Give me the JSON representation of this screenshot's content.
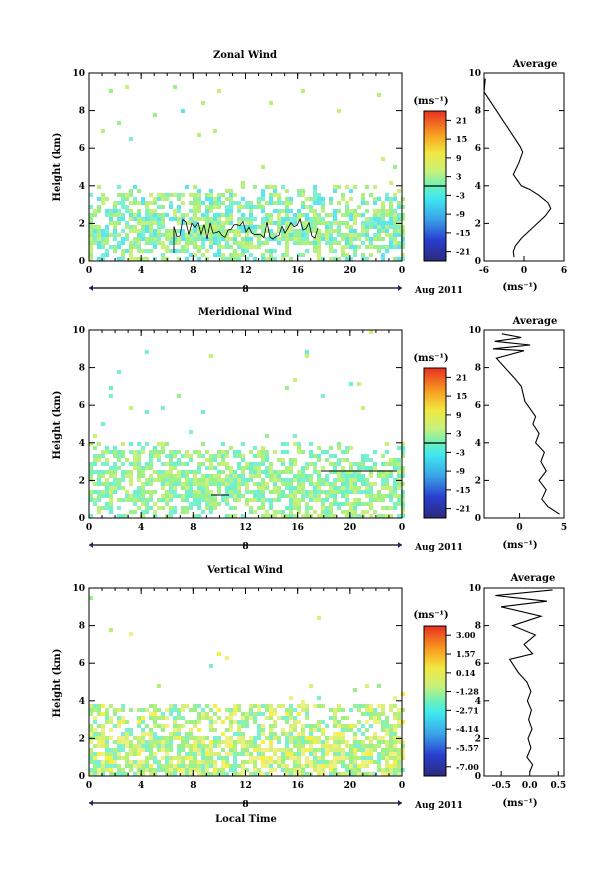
{
  "date_label": "Aug 2011",
  "day_label": "8",
  "xlabel": "Local Time",
  "ylabel": "Height (km)",
  "unit_label": "(ms⁻¹)",
  "x_ticks": [
    "0",
    "4",
    "8",
    "12",
    "16",
    "20",
    "0"
  ],
  "y_ticks": [
    "0",
    "2",
    "4",
    "6",
    "8",
    "10"
  ],
  "avg_title": "Average",
  "chart_data": [
    {
      "type": "heatmap",
      "title": "Zonal Wind",
      "xlabel": "",
      "ylabel": "Height (km)",
      "xlim": [
        0,
        24
      ],
      "ylim": [
        0,
        10
      ],
      "colorbar_ticks": [
        "21",
        "15",
        "9",
        "3",
        "-3",
        "-9",
        "-15",
        "-21"
      ],
      "colorbar_range": [
        -24,
        24
      ],
      "colors": {
        "dominant_low": "#5ee6f0",
        "dominant_high": "#c8f07a"
      },
      "avg_profile": {
        "title": "Average",
        "xlabel": "(ms⁻¹)",
        "x_ticks": [
          "-6",
          "0",
          "6"
        ],
        "xlim": [
          -6,
          6
        ],
        "points": [
          [
            -1.5,
            0.2
          ],
          [
            -1.6,
            0.5
          ],
          [
            -1.3,
            0.8
          ],
          [
            -0.4,
            1.2
          ],
          [
            0.8,
            1.6
          ],
          [
            2.0,
            2.0
          ],
          [
            3.2,
            2.4
          ],
          [
            4.0,
            2.8
          ],
          [
            3.6,
            3.1
          ],
          [
            2.2,
            3.5
          ],
          [
            0.9,
            3.8
          ],
          [
            -0.4,
            4.0
          ],
          [
            -1.6,
            4.6
          ],
          [
            -0.8,
            5.2
          ],
          [
            -0.2,
            5.8
          ],
          [
            -0.6,
            6.1
          ],
          [
            -6,
            9.0
          ],
          [
            -5.8,
            9.7
          ]
        ]
      }
    },
    {
      "type": "heatmap",
      "title": "Meridional Wind",
      "xlabel": "",
      "ylabel": "Height (km)",
      "xlim": [
        0,
        24
      ],
      "ylim": [
        0,
        10
      ],
      "colorbar_ticks": [
        "21",
        "15",
        "9",
        "3",
        "-3",
        "-9",
        "-15",
        "-21"
      ],
      "colorbar_range": [
        -24,
        24
      ],
      "colors": {
        "dominant_low": "#6ef0c8",
        "dominant_high": "#c8f07a"
      },
      "avg_profile": {
        "title": "Average",
        "xlabel": "(ms⁻¹)",
        "x_ticks": [
          "0",
          "5"
        ],
        "xlim": [
          -4,
          5
        ],
        "points": [
          [
            4.5,
            0.2
          ],
          [
            3.2,
            0.6
          ],
          [
            2.5,
            1.0
          ],
          [
            3.0,
            1.5
          ],
          [
            2.2,
            2.0
          ],
          [
            3.0,
            2.5
          ],
          [
            2.4,
            3.0
          ],
          [
            2.8,
            3.5
          ],
          [
            1.8,
            4.0
          ],
          [
            2.2,
            4.5
          ],
          [
            1.5,
            5.0
          ],
          [
            1.8,
            5.4
          ],
          [
            0.6,
            6.2
          ],
          [
            0.2,
            7.0
          ],
          [
            -0.5,
            7.4
          ],
          [
            -2.6,
            8.5
          ],
          [
            0.5,
            8.9
          ],
          [
            -3,
            9.0
          ],
          [
            1.2,
            9.2
          ],
          [
            -2.8,
            9.4
          ],
          [
            0.2,
            9.6
          ],
          [
            -2,
            9.8
          ]
        ]
      }
    },
    {
      "type": "heatmap",
      "title": "Vertical Wind",
      "xlabel": "Local Time",
      "ylabel": "Height (km)",
      "xlim": [
        0,
        24
      ],
      "ylim": [
        0,
        10
      ],
      "colorbar_ticks": [
        "3.00",
        "1.57",
        "0.14",
        "-1.28",
        "-2.71",
        "-4.14",
        "-5.57",
        "-7.00"
      ],
      "colorbar_range": [
        -7.7,
        3.7
      ],
      "colors": {
        "dominant_low": "#d8f07a",
        "dominant_high": "#eef080"
      },
      "avg_profile": {
        "title": "Average",
        "xlabel": "(ms⁻¹)",
        "x_ticks": [
          "-0.5",
          "0.0",
          "0.5"
        ],
        "xlim": [
          -0.8,
          0.6
        ],
        "points": [
          [
            0.0,
            0.2
          ],
          [
            0.05,
            0.6
          ],
          [
            -0.05,
            1.0
          ],
          [
            0.02,
            1.5
          ],
          [
            -0.03,
            2.0
          ],
          [
            0.04,
            2.5
          ],
          [
            -0.02,
            3.0
          ],
          [
            0.03,
            3.5
          ],
          [
            -0.04,
            4.0
          ],
          [
            0.02,
            4.5
          ],
          [
            -0.05,
            5.0
          ],
          [
            -0.2,
            5.5
          ],
          [
            -0.35,
            6.2
          ],
          [
            0.05,
            6.5
          ],
          [
            -0.1,
            7.0
          ],
          [
            0.1,
            7.5
          ],
          [
            -0.3,
            8.0
          ],
          [
            0.2,
            8.5
          ],
          [
            -0.5,
            9.0
          ],
          [
            0.3,
            9.3
          ],
          [
            -0.6,
            9.6
          ],
          [
            0.4,
            9.9
          ]
        ]
      }
    }
  ]
}
